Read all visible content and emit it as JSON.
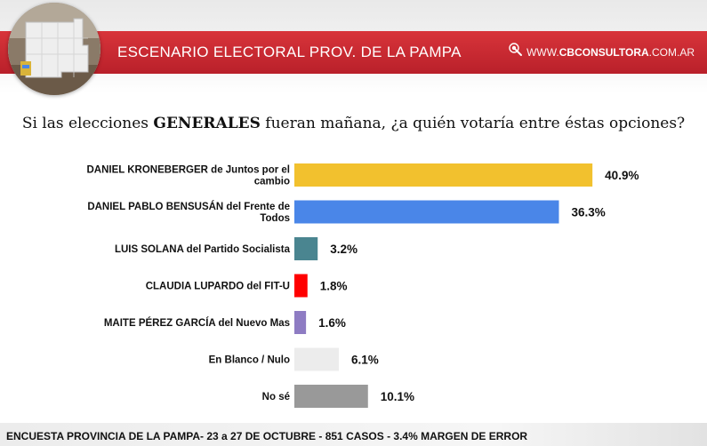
{
  "header": {
    "title": "ESCENARIO ELECTORAL PROV. DE LA PAMPA",
    "brand_prefix": "WWW.",
    "brand_main": "CBCONSULTORA",
    "brand_suffix": ".COM.AR"
  },
  "question": {
    "part1": "Si las elecciones ",
    "emphasis": "GENERALES",
    "part2": " fueran mañana, ¿a quién votaría entre éstas opciones?"
  },
  "colors": {
    "header_red": "#c62932",
    "kroneberger": "#f2c12e",
    "bensusan": "#4a86e8",
    "solana": "#4a8590",
    "lupardo": "#ff0000",
    "perez_garcia": "#8e7cc3",
    "blanco": "#ececec",
    "nose": "#999999"
  },
  "chart_data": {
    "type": "bar",
    "orientation": "horizontal",
    "categories": [
      [
        "DANIEL KRONEBERGER de Juntos por el",
        "cambio"
      ],
      [
        "DANIEL PABLO BENSUSÁN del Frente de",
        "Todos"
      ],
      [
        "LUIS SOLANA del Partido Socialista"
      ],
      [
        "CLAUDIA LUPARDO del FIT-U"
      ],
      [
        "MAITE PÉREZ GARCÍA del Nuevo Mas"
      ],
      [
        "En Blanco / Nulo"
      ],
      [
        "No sé"
      ]
    ],
    "values": [
      40.9,
      36.3,
      3.2,
      1.8,
      1.6,
      6.1,
      10.1
    ],
    "value_labels": [
      "40.9%",
      "36.3%",
      "3.2%",
      "1.8%",
      "1.6%",
      "6.1%",
      "10.1%"
    ],
    "colors": [
      "#f2c12e",
      "#4a86e8",
      "#4a8590",
      "#ff0000",
      "#8e7cc3",
      "#ececec",
      "#999999"
    ],
    "xlim": [
      0,
      41
    ],
    "grid": false,
    "legend": "none"
  },
  "footer": {
    "text": "ENCUESTA PROVINCIA DE LA PAMPA- 23 a 27 DE OCTUBRE - 851 CASOS - 3.4% MARGEN DE ERROR"
  }
}
